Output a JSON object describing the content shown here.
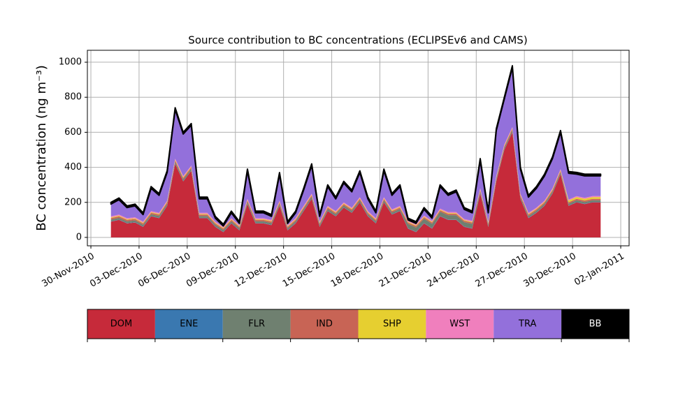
{
  "chart_data": {
    "type": "stacked_area",
    "title": "Source contribution to BC concentrations (ECLIPSEv6 and CAMS)",
    "y_label": "BC concentration (ng m⁻³)",
    "x": [
      "2010-12-01T06:00",
      "2010-12-01T18:00",
      "2010-12-02T06:00",
      "2010-12-02T18:00",
      "2010-12-03T06:00",
      "2010-12-03T18:00",
      "2010-12-04T06:00",
      "2010-12-04T18:00",
      "2010-12-05T06:00",
      "2010-12-05T18:00",
      "2010-12-06T06:00",
      "2010-12-06T18:00",
      "2010-12-07T06:00",
      "2010-12-07T18:00",
      "2010-12-08T06:00",
      "2010-12-08T18:00",
      "2010-12-09T06:00",
      "2010-12-09T18:00",
      "2010-12-10T06:00",
      "2010-12-10T18:00",
      "2010-12-11T06:00",
      "2010-12-11T18:00",
      "2010-12-12T06:00",
      "2010-12-12T18:00",
      "2010-12-13T06:00",
      "2010-12-13T18:00",
      "2010-12-14T06:00",
      "2010-12-14T18:00",
      "2010-12-15T06:00",
      "2010-12-15T18:00",
      "2010-12-16T06:00",
      "2010-12-16T18:00",
      "2010-12-17T06:00",
      "2010-12-17T18:00",
      "2010-12-18T06:00",
      "2010-12-18T18:00",
      "2010-12-19T06:00",
      "2010-12-19T18:00",
      "2010-12-20T06:00",
      "2010-12-20T18:00",
      "2010-12-21T06:00",
      "2010-12-21T18:00",
      "2010-12-22T06:00",
      "2010-12-22T18:00",
      "2010-12-23T06:00",
      "2010-12-23T18:00",
      "2010-12-24T06:00",
      "2010-12-24T18:00",
      "2010-12-25T06:00",
      "2010-12-25T18:00",
      "2010-12-26T06:00",
      "2010-12-26T18:00",
      "2010-12-27T06:00",
      "2010-12-27T18:00",
      "2010-12-28T06:00",
      "2010-12-28T18:00",
      "2010-12-29T06:00",
      "2010-12-29T18:00",
      "2010-12-30T06:00",
      "2010-12-30T18:00",
      "2010-12-31T06:00",
      "2010-12-31T18:00"
    ],
    "series": [
      {
        "name": "DOM",
        "color": "#c62a3a",
        "values": [
          90,
          100,
          80,
          85,
          60,
          120,
          110,
          180,
          420,
          320,
          380,
          110,
          110,
          60,
          30,
          80,
          40,
          190,
          80,
          80,
          70,
          180,
          40,
          80,
          150,
          220,
          60,
          150,
          120,
          170,
          140,
          200,
          120,
          80,
          200,
          130,
          150,
          50,
          30,
          80,
          50,
          120,
          100,
          100,
          60,
          50,
          250,
          60,
          320,
          500,
          600,
          220,
          110,
          140,
          180,
          250,
          360,
          180,
          200,
          190,
          200,
          200
        ]
      },
      {
        "name": "ENE",
        "color": "#3a78b0",
        "values": [
          2,
          2,
          2,
          2,
          2,
          2,
          2,
          2,
          2,
          2,
          2,
          2,
          2,
          2,
          2,
          2,
          2,
          2,
          2,
          2,
          2,
          2,
          2,
          2,
          2,
          2,
          2,
          2,
          2,
          2,
          2,
          2,
          2,
          2,
          2,
          2,
          2,
          2,
          2,
          2,
          2,
          2,
          2,
          2,
          2,
          2,
          2,
          2,
          2,
          2,
          2,
          2,
          2,
          2,
          2,
          2,
          2,
          2,
          2,
          2,
          2,
          2
        ]
      },
      {
        "name": "FLR",
        "color": "#6f8070",
        "values": [
          10,
          10,
          10,
          10,
          10,
          10,
          10,
          10,
          10,
          10,
          10,
          10,
          10,
          10,
          10,
          10,
          10,
          10,
          10,
          10,
          10,
          10,
          10,
          10,
          10,
          10,
          10,
          10,
          10,
          10,
          10,
          10,
          10,
          10,
          10,
          10,
          10,
          25,
          25,
          25,
          25,
          25,
          25,
          25,
          25,
          25,
          10,
          10,
          10,
          10,
          10,
          10,
          10,
          10,
          10,
          10,
          10,
          10,
          10,
          10,
          10,
          10
        ]
      },
      {
        "name": "IND",
        "color": "#c86455",
        "values": [
          8,
          8,
          8,
          8,
          8,
          8,
          8,
          8,
          8,
          8,
          8,
          8,
          8,
          8,
          8,
          8,
          8,
          8,
          8,
          8,
          8,
          8,
          8,
          8,
          8,
          8,
          8,
          8,
          8,
          8,
          8,
          8,
          8,
          8,
          8,
          8,
          8,
          8,
          8,
          8,
          8,
          8,
          8,
          8,
          8,
          8,
          8,
          8,
          8,
          8,
          8,
          8,
          8,
          8,
          8,
          8,
          8,
          8,
          8,
          8,
          8,
          8
        ]
      },
      {
        "name": "SHP",
        "color": "#e6cf30",
        "values": [
          4,
          4,
          4,
          4,
          4,
          4,
          4,
          4,
          4,
          4,
          4,
          4,
          4,
          4,
          4,
          4,
          4,
          4,
          4,
          4,
          4,
          4,
          4,
          4,
          4,
          4,
          4,
          4,
          4,
          4,
          4,
          4,
          4,
          4,
          4,
          4,
          4,
          4,
          4,
          4,
          4,
          4,
          4,
          4,
          4,
          4,
          4,
          4,
          4,
          4,
          4,
          4,
          4,
          4,
          4,
          4,
          4,
          10,
          10,
          10,
          10,
          10
        ]
      },
      {
        "name": "WST",
        "color": "#f07fbd",
        "values": [
          6,
          6,
          6,
          6,
          6,
          6,
          6,
          6,
          6,
          6,
          6,
          6,
          6,
          6,
          6,
          6,
          6,
          6,
          6,
          6,
          6,
          6,
          6,
          6,
          6,
          6,
          6,
          6,
          6,
          6,
          6,
          6,
          6,
          6,
          6,
          6,
          6,
          6,
          6,
          6,
          6,
          6,
          6,
          6,
          6,
          6,
          6,
          6,
          6,
          6,
          6,
          6,
          6,
          6,
          6,
          6,
          6,
          6,
          6,
          6,
          6,
          6
        ]
      },
      {
        "name": "TRA",
        "color": "#9370db",
        "values": [
          70,
          85,
          60,
          65,
          40,
          130,
          100,
          160,
          280,
          240,
          230,
          80,
          80,
          20,
          5,
          30,
          10,
          160,
          30,
          30,
          20,
          150,
          10,
          30,
          90,
          160,
          30,
          110,
          70,
          110,
          90,
          140,
          70,
          30,
          150,
          80,
          110,
          5,
          5,
          35,
          15,
          125,
          95,
          115,
          55,
          45,
          160,
          50,
          260,
          260,
          340,
          140,
          90,
          110,
          140,
          170,
          210,
          150,
          125,
          125,
          115,
          115
        ]
      },
      {
        "name": "BB",
        "color": "#000000",
        "values": [
          10,
          10,
          10,
          10,
          10,
          10,
          10,
          10,
          10,
          10,
          10,
          10,
          10,
          10,
          10,
          10,
          10,
          10,
          10,
          10,
          10,
          10,
          10,
          10,
          10,
          10,
          10,
          10,
          10,
          10,
          10,
          10,
          10,
          10,
          10,
          10,
          10,
          10,
          10,
          10,
          10,
          10,
          10,
          10,
          10,
          10,
          10,
          10,
          10,
          10,
          10,
          10,
          10,
          10,
          10,
          10,
          10,
          10,
          10,
          10,
          10,
          10
        ]
      }
    ],
    "xlim": [
      "2010-11-29T18:45",
      "2011-01-02T12:30"
    ],
    "xticks": [
      {
        "value": "2010-11-30T00:00",
        "label": "30-Nov-2010"
      },
      {
        "value": "2010-12-03T00:00",
        "label": "03-Dec-2010"
      },
      {
        "value": "2010-12-06T00:00",
        "label": "06-Dec-2010"
      },
      {
        "value": "2010-12-09T00:00",
        "label": "09-Dec-2010"
      },
      {
        "value": "2010-12-12T00:00",
        "label": "12-Dec-2010"
      },
      {
        "value": "2010-12-15T00:00",
        "label": "15-Dec-2010"
      },
      {
        "value": "2010-12-18T00:00",
        "label": "18-Dec-2010"
      },
      {
        "value": "2010-12-21T00:00",
        "label": "21-Dec-2010"
      },
      {
        "value": "2010-12-24T00:00",
        "label": "24-Dec-2010"
      },
      {
        "value": "2010-12-27T00:00",
        "label": "27-Dec-2010"
      },
      {
        "value": "2010-12-30T00:00",
        "label": "30-Dec-2010"
      },
      {
        "value": "2011-01-02T00:00",
        "label": "02-Jan-2011"
      }
    ],
    "ylim": [
      -48,
      1068
    ],
    "yticks": [
      0,
      200,
      400,
      600,
      800,
      1000
    ],
    "grid": true,
    "legend": "below"
  }
}
